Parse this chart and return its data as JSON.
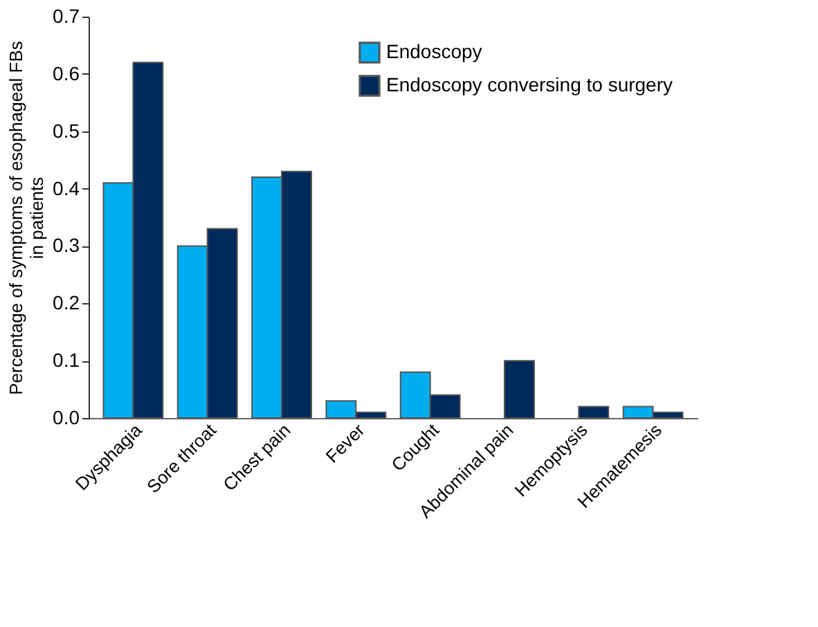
{
  "chart_data": {
    "type": "bar",
    "ylabel": "Percentage of symptoms of esophageal FBs\nin patients",
    "categories": [
      "Dysphagia",
      "Sore throat",
      "Chest pain",
      "Fever",
      "Cought",
      "Abdominal pain",
      "Hemoptysis",
      "Hematemesis"
    ],
    "series": [
      {
        "name": "Endoscopy",
        "color": "#00adef",
        "values": [
          0.41,
          0.3,
          0.42,
          0.03,
          0.08,
          null,
          null,
          0.02
        ]
      },
      {
        "name": "Endoscopy conversing to surgery",
        "color": "#002a5c",
        "values": [
          0.62,
          0.33,
          0.43,
          0.01,
          0.04,
          0.1,
          0.02,
          0.01
        ]
      }
    ],
    "ylim": [
      0,
      0.7
    ],
    "yticks": [
      {
        "value": 0,
        "label": "0.0"
      },
      0.1,
      0.2,
      0.3,
      0.4,
      0.5,
      0.6,
      0.7
    ],
    "grid": false,
    "legend": "top right"
  }
}
